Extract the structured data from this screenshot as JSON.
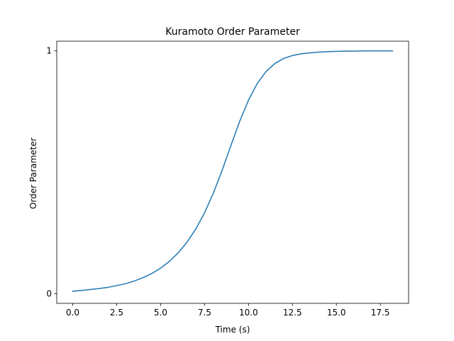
{
  "chart_data": {
    "type": "line",
    "title": "Kuramoto Order Parameter",
    "xlabel": "Time (s)",
    "ylabel": "Order Parameter",
    "xlim": [
      -0.91,
      19.11
    ],
    "ylim": [
      -0.04,
      1.04
    ],
    "xticks": [
      0.0,
      2.5,
      5.0,
      7.5,
      10.0,
      12.5,
      15.0,
      17.5
    ],
    "xtick_labels": [
      "0.0",
      "2.5",
      "5.0",
      "7.5",
      "10.0",
      "12.5",
      "15.0",
      "17.5"
    ],
    "yticks": [
      0,
      1
    ],
    "ytick_labels": [
      "0",
      "1"
    ],
    "grid": false,
    "legend": "none",
    "series": [
      {
        "color": "#1f77b4",
        "x": [
          0.0,
          0.5,
          1.0,
          1.5,
          2.0,
          2.5,
          3.0,
          3.5,
          4.0,
          4.5,
          5.0,
          5.5,
          6.0,
          6.5,
          7.0,
          7.5,
          8.0,
          8.5,
          9.0,
          9.5,
          10.0,
          10.5,
          11.0,
          11.5,
          12.0,
          12.5,
          13.0,
          13.5,
          14.0,
          14.5,
          15.0,
          15.5,
          16.0,
          16.5,
          17.0,
          17.5,
          18.2
        ],
        "y": [
          0.01,
          0.013,
          0.017,
          0.021,
          0.026,
          0.033,
          0.041,
          0.052,
          0.066,
          0.083,
          0.105,
          0.133,
          0.168,
          0.212,
          0.266,
          0.333,
          0.414,
          0.508,
          0.61,
          0.71,
          0.797,
          0.866,
          0.915,
          0.948,
          0.969,
          0.981,
          0.988,
          0.992,
          0.995,
          0.997,
          0.998,
          0.999,
          0.999,
          1.0,
          1.0,
          1.0,
          1.0
        ]
      }
    ]
  }
}
